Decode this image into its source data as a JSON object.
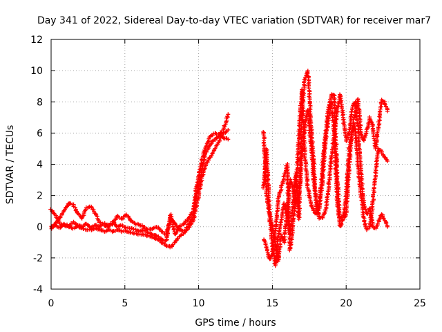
{
  "chart_data": {
    "type": "scatter",
    "title": "Day 341 of 2022, Sidereal Day-to-day VTEC variation (SDTVAR) for receiver mar7",
    "xlabel": "GPS time / hours",
    "ylabel": "SDTVAR / TECUs",
    "xlim": [
      0,
      25
    ],
    "ylim": [
      -4,
      12
    ],
    "xticks": [
      0,
      5,
      10,
      15,
      20,
      25
    ],
    "yticks": [
      -4,
      -2,
      0,
      2,
      4,
      6,
      8,
      10,
      12
    ],
    "grid": true,
    "marker": "+",
    "series": [
      {
        "name": "sdtvar",
        "color": "#ff0000",
        "segments": [
          {
            "x": [
              0,
              0.3,
              0.6,
              0.9,
              1.2,
              1.5,
              1.8,
              2.1,
              2.4,
              2.7,
              3.0,
              3.3,
              3.6,
              3.9,
              4.2,
              4.5,
              4.8,
              5.1,
              5.4,
              5.7,
              6.0,
              6.3,
              6.6,
              6.9,
              7.2,
              7.5,
              7.8,
              8.1,
              8.4,
              8.7,
              9.0,
              9.3,
              9.6,
              9.9,
              10.2,
              10.5,
              10.8,
              11.1,
              11.4,
              11.7,
              12.0
            ],
            "y": [
              1.1,
              0.7,
              0.2,
              0.1,
              0.0,
              -0.1,
              0.0,
              -0.1,
              -0.2,
              -0.2,
              -0.1,
              -0.2,
              -0.3,
              -0.2,
              -0.3,
              -0.2,
              -0.3,
              -0.3,
              -0.4,
              -0.4,
              -0.5,
              -0.5,
              -0.6,
              -0.7,
              -0.8,
              -1.0,
              -1.2,
              -1.3,
              -1.0,
              -0.6,
              -0.4,
              -0.1,
              0.3,
              1.5,
              3.0,
              4.0,
              4.5,
              5.0,
              5.5,
              6.0,
              6.2
            ]
          },
          {
            "x": [
              0,
              0.3,
              0.6,
              0.9,
              1.2,
              1.5,
              1.8,
              2.1,
              2.4,
              2.7,
              3.0,
              3.3,
              3.6,
              3.9,
              4.2,
              4.5,
              4.8,
              5.1,
              5.4,
              5.7,
              6.0,
              6.3,
              6.6,
              6.9,
              7.2,
              7.5,
              7.8,
              8.1,
              8.4,
              8.7,
              9.0,
              9.3,
              9.6,
              9.9,
              10.2,
              10.5,
              10.8,
              11.1,
              11.4,
              11.7,
              12.0
            ],
            "y": [
              -0.1,
              0.2,
              0.6,
              1.1,
              1.5,
              1.4,
              0.9,
              0.5,
              1.2,
              1.3,
              0.8,
              0.3,
              0.1,
              0.0,
              0.2,
              0.7,
              0.5,
              0.8,
              0.4,
              0.2,
              0.1,
              0.0,
              -0.2,
              -0.1,
              0.0,
              -0.3,
              -0.5,
              0.5,
              0.2,
              -0.2,
              -0.3,
              0.1,
              0.6,
              2.2,
              3.6,
              4.8,
              5.3,
              5.6,
              5.8,
              6.3,
              7.2
            ]
          },
          {
            "x": [
              0,
              0.3,
              0.6,
              0.9,
              1.2,
              1.5,
              1.8,
              2.1,
              2.4,
              2.7,
              3.0,
              3.3,
              3.6,
              3.9,
              4.2,
              4.5,
              4.8,
              5.1,
              5.4,
              5.7,
              6.0,
              6.3,
              6.6,
              6.9,
              7.2,
              7.5,
              7.8,
              8.1,
              8.4,
              8.7,
              9.0,
              9.3,
              9.6,
              9.9,
              10.2,
              10.5,
              10.8,
              11.1,
              11.4,
              11.7,
              12.0
            ],
            "y": [
              0.0,
              0.1,
              -0.1,
              0.2,
              0.0,
              0.3,
              0.1,
              0.0,
              0.2,
              -0.1,
              0.1,
              0.0,
              0.2,
              0.1,
              0.3,
              0.0,
              0.1,
              -0.1,
              -0.1,
              -0.2,
              -0.3,
              -0.2,
              -0.4,
              -0.5,
              -0.6,
              -0.8,
              -0.9,
              0.8,
              -0.5,
              0.0,
              0.2,
              0.5,
              1.0,
              2.8,
              4.2,
              5.2,
              5.8,
              6.0,
              5.9,
              5.7,
              5.6
            ]
          },
          {
            "x": [
              14.4,
              14.6,
              14.8,
              15.0,
              15.2,
              15.4,
              15.6,
              15.8,
              16.0,
              16.2,
              16.4,
              16.6,
              16.8,
              17.0,
              17.2,
              17.4,
              17.6,
              17.8,
              18.0,
              18.2,
              18.4,
              18.6,
              18.8,
              19.0,
              19.2,
              19.4,
              19.6,
              19.8,
              20.0,
              20.2,
              20.4,
              20.6,
              20.8,
              21.0,
              21.2,
              21.4,
              21.6,
              21.8,
              22.0,
              22.2,
              22.4,
              22.6,
              22.8
            ],
            "y": [
              6.1,
              2.0,
              0.8,
              -1.2,
              -2.5,
              -0.5,
              0.5,
              1.5,
              0.8,
              -0.5,
              1.5,
              3.5,
              0.5,
              7.5,
              9.5,
              10.0,
              7.0,
              4.0,
              1.0,
              1.2,
              4.0,
              6.0,
              7.5,
              8.5,
              8.4,
              3.0,
              0.5,
              0.6,
              0.7,
              4.0,
              6.0,
              7.2,
              8.2,
              6.0,
              5.5,
              6.2,
              7.0,
              6.5,
              5.0,
              6.5,
              8.1,
              8.0,
              7.4
            ]
          },
          {
            "x": [
              14.4,
              14.6,
              14.8,
              15.0,
              15.2,
              15.4,
              15.6,
              15.8,
              16.0,
              16.2,
              16.4,
              16.6,
              16.8,
              17.0,
              17.2,
              17.4,
              17.6,
              17.8,
              18.0,
              18.2,
              18.4,
              18.6,
              18.8,
              19.0,
              19.2,
              19.4,
              19.6,
              19.8,
              20.0,
              20.2,
              20.4,
              20.6,
              20.8,
              21.0,
              21.2,
              21.4,
              21.6,
              21.8,
              22.0,
              22.2,
              22.4,
              22.6,
              22.8
            ],
            "y": [
              -0.8,
              -1.3,
              -2.1,
              -1.8,
              -0.3,
              1.8,
              2.5,
              3.2,
              4.0,
              -1.5,
              0.0,
              2.2,
              6.0,
              8.8,
              4.5,
              2.5,
              1.5,
              1.0,
              0.8,
              1.5,
              3.0,
              5.5,
              7.0,
              8.0,
              6.0,
              1.5,
              0.0,
              0.5,
              2.0,
              5.0,
              6.0,
              6.5,
              4.0,
              2.0,
              0.5,
              -0.2,
              0.0,
              1.5,
              3.5,
              5.0,
              4.8,
              4.5,
              4.2
            ]
          },
          {
            "x": [
              14.4,
              14.6,
              14.8,
              15.0,
              15.2,
              15.4,
              15.6,
              15.8,
              16.0,
              16.2,
              16.4,
              16.6,
              16.8,
              17.0,
              17.2,
              17.4,
              17.6,
              17.8,
              18.0,
              18.2,
              18.4,
              18.6,
              18.8,
              19.0,
              19.2,
              19.4,
              19.6,
              19.8,
              20.0,
              20.2,
              20.4,
              20.6,
              20.8,
              21.0,
              21.2,
              21.4,
              21.6,
              21.8,
              22.0,
              22.2,
              22.4,
              22.6,
              22.8
            ],
            "y": [
              2.5,
              5.0,
              1.0,
              0.0,
              -1.0,
              -2.2,
              -0.5,
              -1.0,
              1.0,
              3.0,
              2.5,
              1.5,
              2.0,
              4.5,
              6.5,
              7.5,
              5.5,
              3.0,
              1.5,
              0.5,
              0.6,
              1.0,
              2.5,
              4.5,
              6.0,
              7.5,
              8.5,
              7.0,
              5.5,
              6.0,
              7.5,
              8.0,
              6.5,
              3.5,
              1.5,
              0.8,
              1.2,
              0.0,
              -0.1,
              0.3,
              0.8,
              0.5,
              0.0
            ]
          }
        ]
      }
    ]
  }
}
